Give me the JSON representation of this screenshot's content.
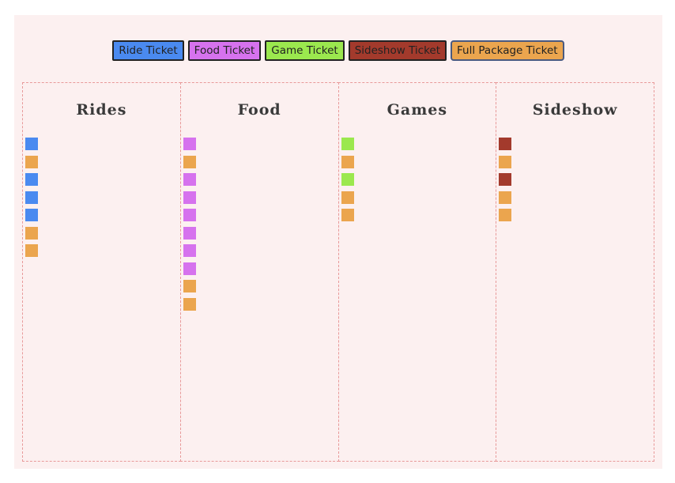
{
  "colors": {
    "ride": "#4a8af0",
    "food": "#d672ee",
    "game": "#9be84e",
    "sideshow": "#a33a2c",
    "full": "#eba54e"
  },
  "toolbar": {
    "buttons": [
      {
        "label": "Ride Ticket",
        "type": "ride"
      },
      {
        "label": "Food Ticket",
        "type": "food"
      },
      {
        "label": "Game Ticket",
        "type": "game"
      },
      {
        "label": "Sideshow Ticket",
        "type": "sideshow"
      },
      {
        "label": "Full Package Ticket",
        "type": "full"
      }
    ]
  },
  "columns": [
    {
      "title": "Rides",
      "tickets": [
        "ride",
        "full",
        "ride",
        "ride",
        "ride",
        "full",
        "full"
      ]
    },
    {
      "title": "Food",
      "tickets": [
        "food",
        "full",
        "food",
        "food",
        "food",
        "food",
        "food",
        "food",
        "full",
        "full"
      ]
    },
    {
      "title": "Games",
      "tickets": [
        "game",
        "full",
        "game",
        "full",
        "full"
      ]
    },
    {
      "title": "Sideshow",
      "tickets": [
        "sideshow",
        "full",
        "sideshow",
        "full",
        "full"
      ]
    }
  ]
}
